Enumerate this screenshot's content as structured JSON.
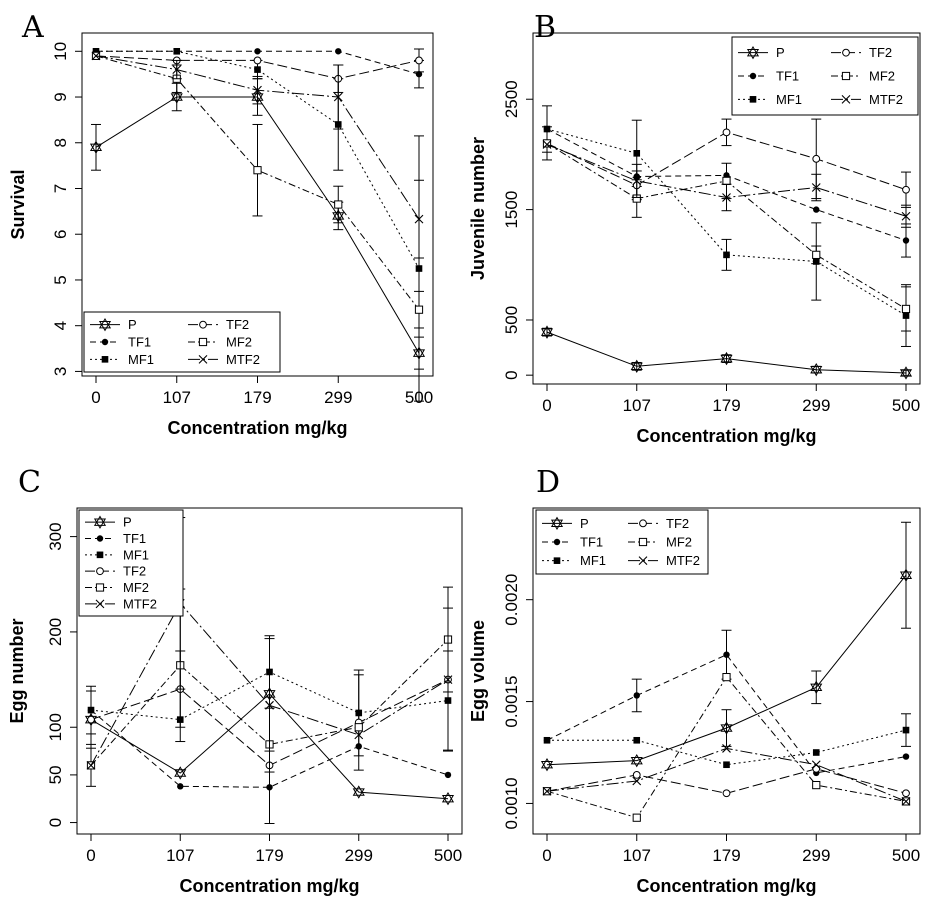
{
  "chart_data": [
    {
      "panel": "A",
      "type": "line",
      "xlabel": "Concentration mg/kg",
      "ylabel": "Survival",
      "categories": [
        "0",
        "107",
        "179",
        "299",
        "500"
      ],
      "ylim": [
        2.9,
        10.4
      ],
      "yticks": [
        3,
        4,
        5,
        6,
        7,
        8,
        9,
        10
      ],
      "legend_columns": 2,
      "series": [
        {
          "name": "P",
          "values": [
            7.9,
            9.0,
            9.0,
            6.4,
            3.4
          ],
          "err": [
            0.5,
            0.3,
            0.4,
            0.3,
            0.35
          ]
        },
        {
          "name": "TF1",
          "values": [
            10.0,
            10.0,
            10.0,
            10.0,
            9.5
          ],
          "err": [
            0,
            0,
            0,
            0,
            0.3
          ]
        },
        {
          "name": "MF1",
          "values": [
            10.0,
            10.0,
            9.6,
            8.4,
            5.25
          ],
          "err": [
            0,
            0,
            0.2,
            1.0,
            2.9
          ]
        },
        {
          "name": "TF2",
          "values": [
            9.9,
            9.8,
            9.8,
            9.4,
            9.8
          ],
          "err": [
            0,
            0,
            0,
            0.3,
            0.25
          ]
        },
        {
          "name": "MF2",
          "values": [
            9.9,
            9.4,
            7.4,
            6.65,
            4.35
          ],
          "err": [
            0,
            0.3,
            1.0,
            0.4,
            0.4
          ]
        },
        {
          "name": "MTF2",
          "values": [
            9.9,
            9.6,
            9.15,
            9.0,
            6.33
          ],
          "err": [
            0,
            0.2,
            0.3,
            0.7,
            0.85
          ]
        }
      ]
    },
    {
      "panel": "B",
      "type": "line",
      "xlabel": "Concentration mg/kg",
      "ylabel": "Juvenile number",
      "categories": [
        "0",
        "107",
        "179",
        "299",
        "500"
      ],
      "ylim": [
        -80,
        3100
      ],
      "yticks": [
        0,
        500,
        1500,
        2500
      ],
      "legend_columns": 2,
      "series": [
        {
          "name": "P",
          "values": [
            390,
            80,
            150,
            50,
            20
          ],
          "err": [
            35,
            35,
            35,
            30,
            25
          ]
        },
        {
          "name": "TF1",
          "values": [
            2230,
            1800,
            1810,
            1500,
            1220
          ],
          "err": [
            0,
            0,
            0,
            0,
            150
          ]
        },
        {
          "name": "MF1",
          "values": [
            2230,
            2010,
            1090,
            1030,
            540
          ],
          "err": [
            210,
            300,
            140,
            350,
            280
          ]
        },
        {
          "name": "TF2",
          "values": [
            2100,
            1720,
            2200,
            1960,
            1680
          ],
          "err": [
            150,
            130,
            120,
            360,
            160
          ]
        },
        {
          "name": "MF2",
          "values": [
            2100,
            1600,
            1760,
            1090,
            600
          ],
          "err": [
            0,
            170,
            160,
            80,
            200
          ]
        },
        {
          "name": "MTF2",
          "values": [
            2090,
            1760,
            1610,
            1700,
            1440
          ],
          "err": [
            0,
            150,
            120,
            120,
            100
          ]
        }
      ]
    },
    {
      "panel": "C",
      "type": "line",
      "xlabel": "Concentration mg/kg",
      "ylabel": "Egg number",
      "categories": [
        "0",
        "107",
        "179",
        "299",
        "500"
      ],
      "ylim": [
        -12,
        330
      ],
      "yticks": [
        0,
        50,
        100,
        200,
        300
      ],
      "legend_columns": 1,
      "series": [
        {
          "name": "P",
          "values": [
            108,
            52,
            135,
            32,
            25
          ],
          "err": [
            0,
            0,
            0,
            0,
            0
          ]
        },
        {
          "name": "TF1",
          "values": [
            118,
            38,
            37,
            80,
            50
          ],
          "err": [
            25,
            0,
            38,
            0,
            0
          ]
        },
        {
          "name": "MF1",
          "values": [
            118,
            108,
            158,
            115,
            128
          ],
          "err": [
            0,
            0,
            38,
            45,
            52
          ]
        },
        {
          "name": "TF2",
          "values": [
            108,
            140,
            60,
            105,
            150
          ],
          "err": [
            30,
            40,
            0,
            50,
            0
          ]
        },
        {
          "name": "MF2",
          "values": [
            60,
            165,
            82,
            100,
            192
          ],
          "err": [
            22,
            80,
            0,
            0,
            55
          ]
        },
        {
          "name": "MTF2",
          "values": [
            60,
            230,
            123,
            92,
            150
          ],
          "err": [
            0,
            90,
            70,
            0,
            75
          ]
        }
      ]
    },
    {
      "panel": "D",
      "type": "line",
      "xlabel": "Concentration mg/kg",
      "ylabel": "Egg volume",
      "categories": [
        "0",
        "107",
        "179",
        "299",
        "500"
      ],
      "ylim": [
        0.00085,
        0.00245
      ],
      "yticks": [
        0.001,
        0.0015,
        0.002
      ],
      "yticklabels": [
        "0.0010",
        "0.0015",
        "0.0020"
      ],
      "legend_columns": 2,
      "series": [
        {
          "name": "P",
          "values": [
            0.00119,
            0.00121,
            0.00137,
            0.00157,
            0.00212
          ],
          "err": [
            0,
            0,
            9e-05,
            8e-05,
            0.00026
          ]
        },
        {
          "name": "TF1",
          "values": [
            0.00131,
            0.00153,
            0.00173,
            0.00115,
            0.00123
          ],
          "err": [
            0,
            8e-05,
            0.00012,
            0,
            0
          ]
        },
        {
          "name": "MF1",
          "values": [
            0.00131,
            0.00131,
            0.00119,
            0.00125,
            0.00136
          ],
          "err": [
            0,
            0,
            0,
            0,
            8e-05
          ]
        },
        {
          "name": "TF2",
          "values": [
            0.00106,
            0.00114,
            0.00105,
            0.00117,
            0.00105
          ],
          "err": [
            0,
            0,
            0,
            0,
            0
          ]
        },
        {
          "name": "MF2",
          "values": [
            0.00106,
            0.00093,
            0.00162,
            0.00109,
            0.00101
          ],
          "err": [
            0,
            0,
            0,
            0,
            0
          ]
        },
        {
          "name": "MTF2",
          "values": [
            0.00106,
            0.00111,
            0.00127,
            0.00119,
            0.00101
          ],
          "err": [
            0,
            0,
            0,
            0,
            0
          ]
        }
      ]
    }
  ]
}
